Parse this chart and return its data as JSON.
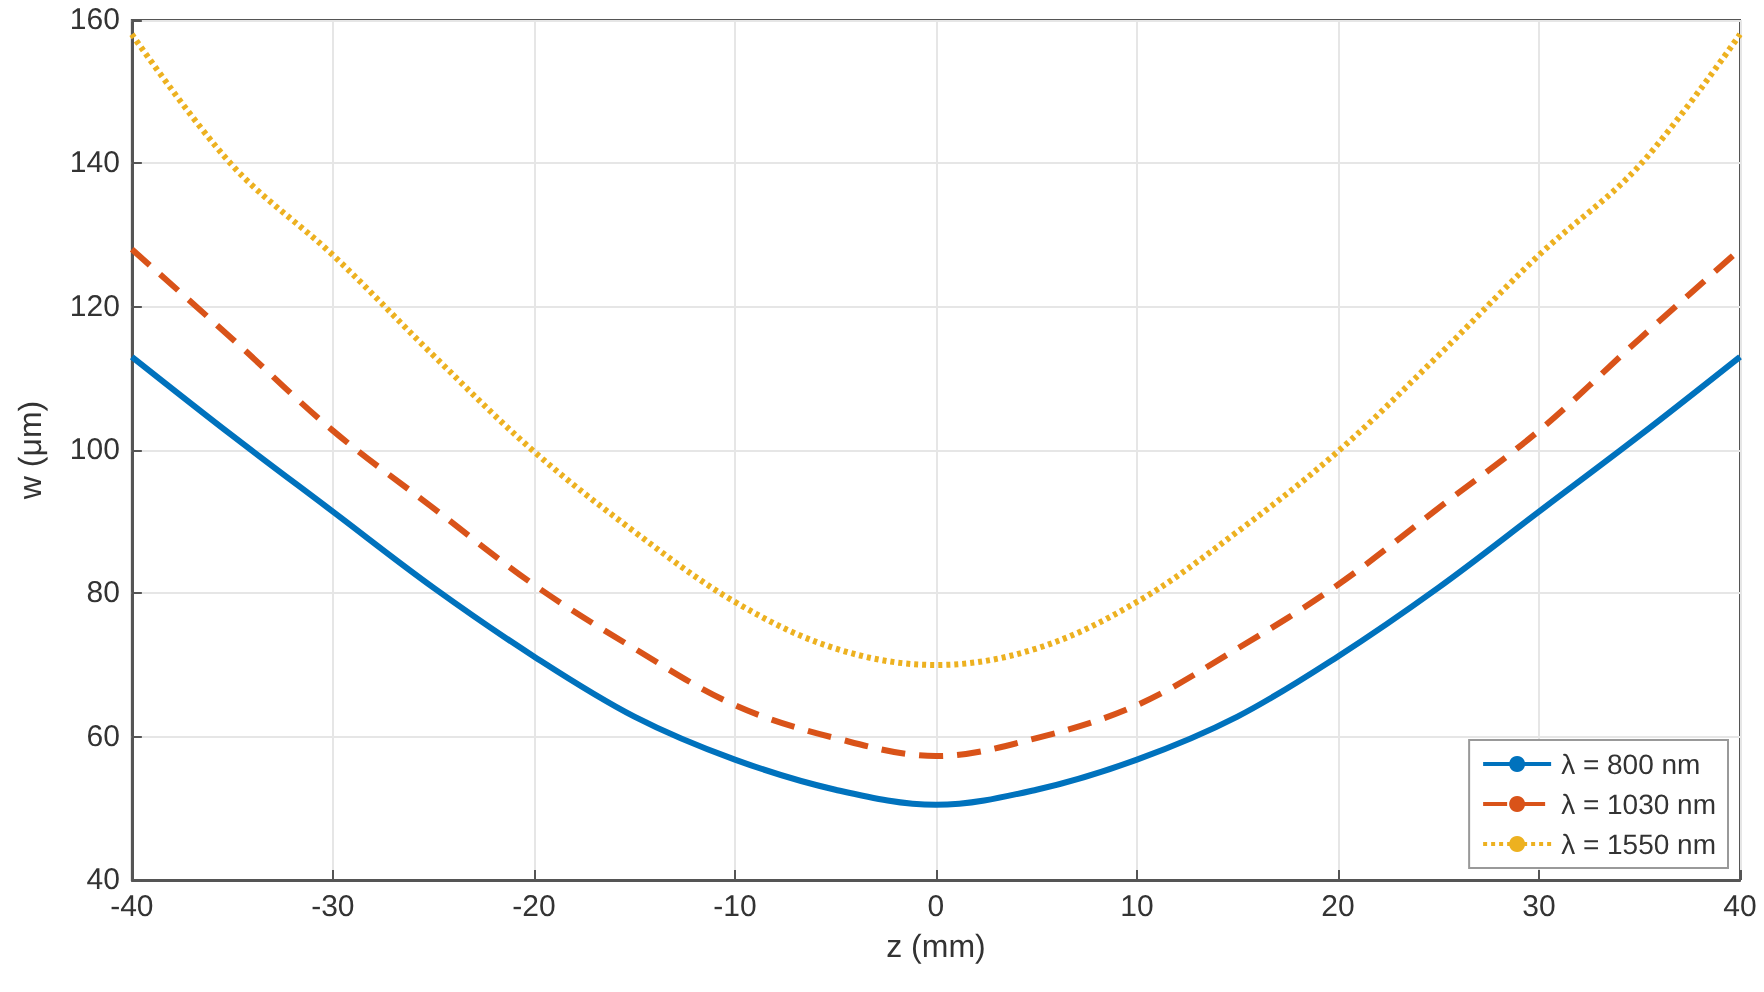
{
  "chart_data": {
    "type": "line",
    "xlabel": "z (mm)",
    "ylabel": "w (μm)",
    "x": [
      -40,
      -35,
      -30,
      -25,
      -20,
      -15,
      -10,
      -5,
      0,
      5,
      10,
      15,
      20,
      25,
      30,
      35,
      40
    ],
    "series": [
      {
        "name": "λ = 800 nm",
        "color": "#0072bd",
        "line_style": "solid",
        "values": [
          113,
          102,
          91.4,
          80.8,
          71.2,
          62.8,
          56.8,
          52.6,
          50.5,
          52.6,
          56.8,
          62.8,
          71.2,
          80.8,
          91.4,
          102,
          113
        ]
      },
      {
        "name": "λ = 1030 nm",
        "color": "#d95319",
        "line_style": "dashed",
        "values": [
          128,
          115.5,
          102.7,
          91.9,
          81.2,
          72.3,
          64.4,
          59.8,
          57.3,
          59.8,
          64.4,
          72.3,
          81.2,
          91.9,
          102.7,
          115.5,
          128
        ]
      },
      {
        "name": "λ = 1550 nm",
        "color": "#edb120",
        "line_style": "dotted",
        "values": [
          158,
          139.7,
          127.2,
          113.2,
          99.8,
          88.6,
          78.8,
          72.3,
          70,
          72.3,
          78.8,
          88.6,
          99.8,
          113.2,
          127.2,
          139.7,
          158
        ]
      }
    ],
    "xlim": [
      -40,
      40
    ],
    "xticks": [
      -40,
      -30,
      -20,
      -10,
      0,
      10,
      20,
      30,
      40
    ],
    "ylim": [
      40,
      160
    ],
    "yticks": [
      40,
      60,
      80,
      100,
      120,
      140,
      160
    ],
    "grid": true,
    "legend": "bottom right",
    "marker": "none"
  }
}
